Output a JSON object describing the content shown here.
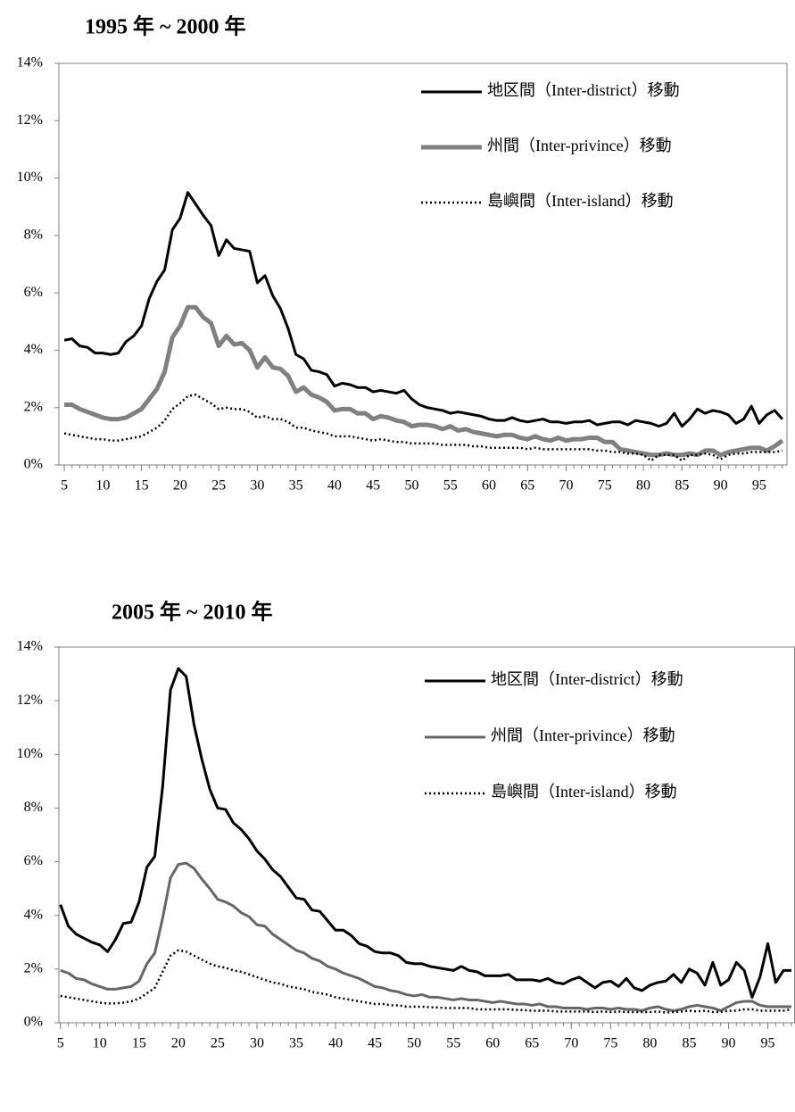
{
  "chart_data": [
    {
      "type": "line",
      "title": "1995 年 ~ 2000 年",
      "x": [
        5,
        6,
        7,
        8,
        9,
        10,
        11,
        12,
        13,
        14,
        15,
        16,
        17,
        18,
        19,
        20,
        21,
        22,
        23,
        24,
        25,
        26,
        27,
        28,
        29,
        30,
        31,
        32,
        33,
        34,
        35,
        36,
        37,
        38,
        39,
        40,
        41,
        42,
        43,
        44,
        45,
        46,
        47,
        48,
        49,
        50,
        51,
        52,
        53,
        54,
        55,
        56,
        57,
        58,
        59,
        60,
        61,
        62,
        63,
        64,
        65,
        66,
        67,
        68,
        69,
        70,
        71,
        72,
        73,
        74,
        75,
        76,
        77,
        78,
        79,
        80,
        81,
        82,
        83,
        84,
        85,
        86,
        87,
        88,
        89,
        90,
        91,
        92,
        93,
        94,
        95,
        96,
        97,
        98
      ],
      "xlim": [
        4.3,
        98.6
      ],
      "xticks": [
        5,
        10,
        15,
        20,
        25,
        30,
        35,
        40,
        45,
        50,
        55,
        60,
        65,
        70,
        75,
        80,
        85,
        90,
        95
      ],
      "ylim": [
        0,
        14
      ],
      "yticks": [
        {
          "value": 0,
          "label": "0%"
        },
        {
          "value": 2,
          "label": "2%"
        },
        {
          "value": 4,
          "label": "4%"
        },
        {
          "value": 6,
          "label": "6%"
        },
        {
          "value": 8,
          "label": "8%"
        },
        {
          "value": 10,
          "label": "10%"
        },
        {
          "value": 12,
          "label": "12%"
        },
        {
          "value": 14,
          "label": "14%"
        }
      ],
      "legend": "upper right",
      "series": [
        {
          "name": "地区間（Inter-district）移動",
          "color": "#000000",
          "style": "solid",
          "values": [
            4.35,
            4.4,
            4.15,
            4.1,
            3.9,
            3.9,
            3.85,
            3.9,
            4.3,
            4.5,
            4.85,
            5.8,
            6.4,
            6.8,
            8.2,
            8.6,
            9.5,
            9.1,
            8.7,
            8.35,
            7.3,
            7.85,
            7.55,
            7.5,
            7.45,
            6.35,
            6.6,
            5.9,
            5.45,
            4.75,
            3.85,
            3.7,
            3.3,
            3.25,
            3.15,
            2.75,
            2.85,
            2.8,
            2.7,
            2.7,
            2.55,
            2.6,
            2.55,
            2.5,
            2.6,
            2.3,
            2.1,
            2.0,
            1.95,
            1.9,
            1.8,
            1.85,
            1.8,
            1.75,
            1.7,
            1.6,
            1.55,
            1.55,
            1.65,
            1.55,
            1.5,
            1.55,
            1.6,
            1.5,
            1.5,
            1.45,
            1.5,
            1.5,
            1.55,
            1.4,
            1.45,
            1.5,
            1.5,
            1.4,
            1.55,
            1.5,
            1.45,
            1.35,
            1.45,
            1.8,
            1.35,
            1.6,
            1.95,
            1.8,
            1.9,
            1.85,
            1.75,
            1.45,
            1.6,
            2.05,
            1.45,
            1.75,
            1.9,
            1.6
          ]
        },
        {
          "name": "州間（Inter-privince）移動",
          "color": "#808080",
          "style": "thick",
          "values": [
            2.1,
            2.1,
            1.95,
            1.85,
            1.75,
            1.65,
            1.6,
            1.6,
            1.65,
            1.8,
            1.95,
            2.3,
            2.65,
            3.25,
            4.45,
            4.85,
            5.5,
            5.5,
            5.15,
            4.95,
            4.15,
            4.5,
            4.2,
            4.25,
            4.0,
            3.4,
            3.75,
            3.4,
            3.35,
            3.1,
            2.55,
            2.7,
            2.45,
            2.35,
            2.2,
            1.9,
            1.95,
            1.95,
            1.8,
            1.8,
            1.6,
            1.7,
            1.65,
            1.55,
            1.5,
            1.35,
            1.4,
            1.4,
            1.35,
            1.25,
            1.35,
            1.2,
            1.25,
            1.15,
            1.1,
            1.05,
            1.0,
            1.05,
            1.05,
            0.95,
            0.9,
            1.0,
            0.9,
            0.85,
            0.95,
            0.85,
            0.9,
            0.9,
            0.95,
            0.95,
            0.8,
            0.8,
            0.55,
            0.5,
            0.45,
            0.4,
            0.35,
            0.35,
            0.4,
            0.35,
            0.35,
            0.4,
            0.35,
            0.5,
            0.5,
            0.35,
            0.45,
            0.5,
            0.55,
            0.6,
            0.6,
            0.5,
            0.65,
            0.85
          ]
        },
        {
          "name": "島嶼間（Inter-island）移動",
          "color": "#000000",
          "style": "dotted",
          "values": [
            1.1,
            1.05,
            1.0,
            0.95,
            0.9,
            0.9,
            0.85,
            0.85,
            0.9,
            0.95,
            1.0,
            1.15,
            1.3,
            1.55,
            1.95,
            2.15,
            2.4,
            2.45,
            2.3,
            2.15,
            1.95,
            2.0,
            1.95,
            1.95,
            1.85,
            1.65,
            1.7,
            1.6,
            1.6,
            1.5,
            1.3,
            1.3,
            1.2,
            1.15,
            1.1,
            1.0,
            1.0,
            1.0,
            0.95,
            0.9,
            0.85,
            0.9,
            0.85,
            0.8,
            0.8,
            0.75,
            0.75,
            0.75,
            0.75,
            0.7,
            0.7,
            0.7,
            0.7,
            0.65,
            0.65,
            0.6,
            0.6,
            0.6,
            0.6,
            0.6,
            0.55,
            0.6,
            0.55,
            0.55,
            0.55,
            0.55,
            0.55,
            0.55,
            0.55,
            0.5,
            0.5,
            0.45,
            0.45,
            0.4,
            0.4,
            0.35,
            0.15,
            0.35,
            0.35,
            0.35,
            0.15,
            0.35,
            0.35,
            0.4,
            0.35,
            0.2,
            0.35,
            0.4,
            0.4,
            0.45,
            0.45,
            0.45,
            0.45,
            0.5
          ]
        }
      ]
    },
    {
      "type": "line",
      "title": "2005 年 ~ 2010 年",
      "x": [
        5,
        6,
        7,
        8,
        9,
        10,
        11,
        12,
        13,
        14,
        15,
        16,
        17,
        18,
        19,
        20,
        21,
        22,
        23,
        24,
        25,
        26,
        27,
        28,
        29,
        30,
        31,
        32,
        33,
        34,
        35,
        36,
        37,
        38,
        39,
        40,
        41,
        42,
        43,
        44,
        45,
        46,
        47,
        48,
        49,
        50,
        51,
        52,
        53,
        54,
        55,
        56,
        57,
        58,
        59,
        60,
        61,
        62,
        63,
        64,
        65,
        66,
        67,
        68,
        69,
        70,
        71,
        72,
        73,
        74,
        75,
        76,
        77,
        78,
        79,
        80,
        81,
        82,
        83,
        84,
        85,
        86,
        87,
        88,
        89,
        90,
        91,
        92,
        93,
        94,
        95,
        96,
        97,
        98
      ],
      "xlim": [
        4.8,
        98.4
      ],
      "xticks": [
        5,
        10,
        15,
        20,
        25,
        30,
        35,
        40,
        45,
        50,
        55,
        60,
        65,
        70,
        75,
        80,
        85,
        90,
        95
      ],
      "ylim": [
        0,
        14
      ],
      "yticks": [
        {
          "value": 0,
          "label": "0%"
        },
        {
          "value": 2,
          "label": "2%"
        },
        {
          "value": 4,
          "label": "4%"
        },
        {
          "value": 6,
          "label": "6%"
        },
        {
          "value": 8,
          "label": "8%"
        },
        {
          "value": 10,
          "label": "10%"
        },
        {
          "value": 12,
          "label": "12%"
        },
        {
          "value": 14,
          "label": "14%"
        }
      ],
      "legend": "upper right",
      "series": [
        {
          "name": "地区間（Inter-district）移動",
          "color": "#000000",
          "style": "solid",
          "values": [
            4.4,
            3.6,
            3.3,
            3.15,
            3.0,
            2.9,
            2.65,
            3.1,
            3.7,
            3.75,
            4.5,
            5.8,
            6.2,
            8.8,
            12.4,
            13.2,
            12.9,
            11.1,
            9.8,
            8.7,
            8.0,
            7.95,
            7.45,
            7.2,
            6.85,
            6.4,
            6.1,
            5.7,
            5.45,
            5.05,
            4.65,
            4.6,
            4.2,
            4.15,
            3.8,
            3.45,
            3.45,
            3.25,
            2.95,
            2.85,
            2.65,
            2.6,
            2.6,
            2.5,
            2.25,
            2.2,
            2.2,
            2.1,
            2.05,
            2.0,
            1.95,
            2.1,
            1.95,
            1.9,
            1.75,
            1.75,
            1.75,
            1.8,
            1.6,
            1.6,
            1.6,
            1.55,
            1.65,
            1.5,
            1.45,
            1.6,
            1.7,
            1.5,
            1.3,
            1.5,
            1.55,
            1.35,
            1.65,
            1.3,
            1.2,
            1.4,
            1.5,
            1.55,
            1.8,
            1.5,
            2.0,
            1.85,
            1.4,
            2.25,
            1.4,
            1.6,
            2.25,
            1.95,
            0.95,
            1.7,
            2.95,
            1.5,
            1.95,
            1.95
          ]
        },
        {
          "name": "州間（Inter-privince）移動",
          "color": "#666666",
          "style": "solid",
          "values": [
            1.95,
            1.85,
            1.65,
            1.6,
            1.45,
            1.35,
            1.25,
            1.25,
            1.3,
            1.35,
            1.55,
            2.2,
            2.6,
            3.9,
            5.4,
            5.9,
            5.95,
            5.75,
            5.35,
            5.0,
            4.6,
            4.5,
            4.35,
            4.1,
            3.95,
            3.65,
            3.6,
            3.3,
            3.1,
            2.9,
            2.7,
            2.6,
            2.4,
            2.3,
            2.1,
            2.0,
            1.85,
            1.75,
            1.65,
            1.5,
            1.35,
            1.3,
            1.2,
            1.15,
            1.05,
            1.0,
            1.05,
            0.95,
            0.95,
            0.9,
            0.85,
            0.9,
            0.85,
            0.85,
            0.8,
            0.75,
            0.8,
            0.75,
            0.7,
            0.7,
            0.65,
            0.7,
            0.6,
            0.6,
            0.55,
            0.55,
            0.55,
            0.5,
            0.55,
            0.55,
            0.5,
            0.55,
            0.5,
            0.5,
            0.45,
            0.55,
            0.6,
            0.5,
            0.45,
            0.5,
            0.6,
            0.65,
            0.6,
            0.55,
            0.45,
            0.6,
            0.75,
            0.8,
            0.8,
            0.65,
            0.6,
            0.6,
            0.6,
            0.6
          ]
        },
        {
          "name": "島嶼間（Inter-island）移動",
          "color": "#000000",
          "style": "dotted",
          "values": [
            1.0,
            0.95,
            0.9,
            0.85,
            0.8,
            0.75,
            0.72,
            0.72,
            0.75,
            0.8,
            0.9,
            1.1,
            1.3,
            1.9,
            2.5,
            2.7,
            2.65,
            2.5,
            2.35,
            2.2,
            2.1,
            2.05,
            1.95,
            1.9,
            1.8,
            1.7,
            1.6,
            1.5,
            1.45,
            1.35,
            1.3,
            1.25,
            1.15,
            1.1,
            1.05,
            0.95,
            0.9,
            0.85,
            0.8,
            0.75,
            0.7,
            0.7,
            0.65,
            0.65,
            0.6,
            0.6,
            0.6,
            0.58,
            0.57,
            0.55,
            0.55,
            0.55,
            0.55,
            0.5,
            0.5,
            0.5,
            0.5,
            0.5,
            0.48,
            0.47,
            0.45,
            0.45,
            0.45,
            0.42,
            0.42,
            0.42,
            0.42,
            0.42,
            0.4,
            0.42,
            0.4,
            0.42,
            0.4,
            0.4,
            0.4,
            0.4,
            0.42,
            0.38,
            0.4,
            0.42,
            0.45,
            0.42,
            0.45,
            0.4,
            0.4,
            0.45,
            0.45,
            0.5,
            0.5,
            0.45,
            0.45,
            0.45,
            0.45,
            0.5
          ]
        }
      ]
    }
  ]
}
